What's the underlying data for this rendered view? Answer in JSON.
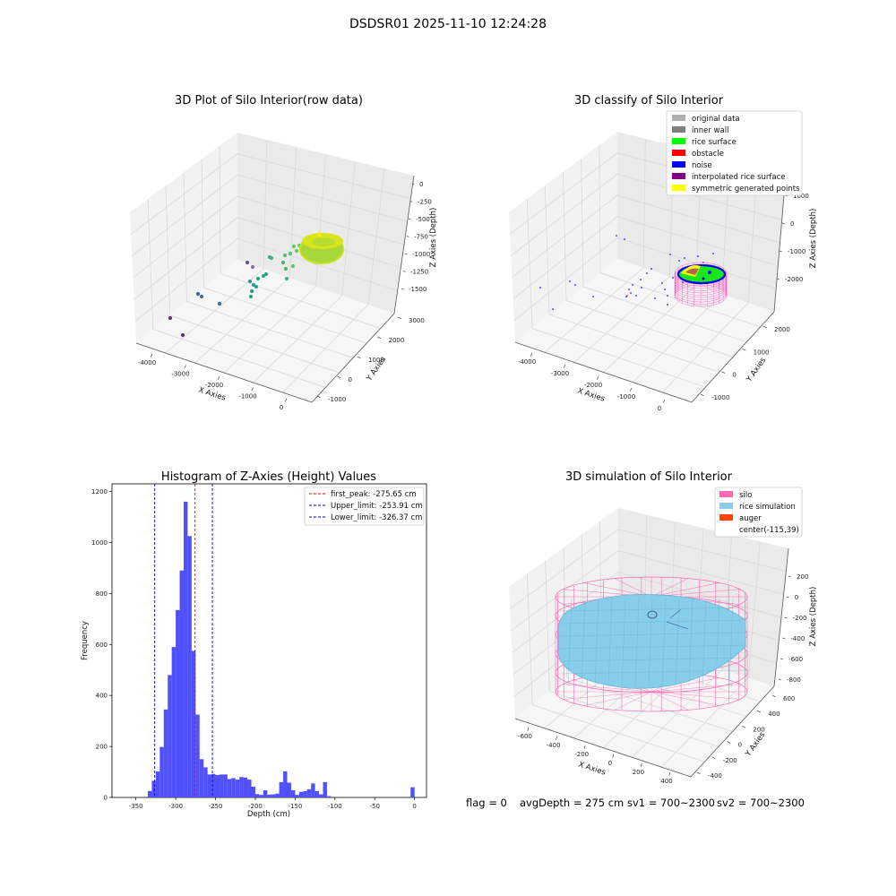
{
  "figure": {
    "suptitle": "DSDSR01 2025-11-10 12:24:28",
    "status": {
      "flag": "flag = 0",
      "avg_depth": "avgDepth = 275 cm",
      "sv1": "sv1 = 700~2300",
      "sv2": "sv2 = 700~2300"
    }
  },
  "chart_data": [
    {
      "type": "scatter",
      "projection": "3d",
      "title": "3D Plot of Silo Interior(row data)",
      "xlabel": "X Axies",
      "ylabel": "Y Axies",
      "zlabel": "Z Axies (Depth)",
      "x_ticks": [
        "-4000",
        "-3000",
        "-2000",
        "-1000",
        "0"
      ],
      "y_ticks": [
        "-1000",
        "0",
        "1000",
        "2000",
        "3000"
      ],
      "z_ticks": [
        "0",
        "-250",
        "-500",
        "-750",
        "-1000",
        "-1250",
        "-1500"
      ],
      "colormap": "viridis",
      "sample_points": [
        {
          "x": -4000,
          "y": -600,
          "z": -1600
        },
        {
          "x": -3900,
          "y": -300,
          "z": -1500
        },
        {
          "x": -3700,
          "y": 0,
          "z": -1300
        },
        {
          "x": -3400,
          "y": 200,
          "z": -1300
        },
        {
          "x": -3000,
          "y": 200,
          "z": -1250
        },
        {
          "x": -2600,
          "y": 700,
          "z": -1100
        },
        {
          "x": -2300,
          "y": 900,
          "z": -1050
        },
        {
          "x": -2000,
          "y": 800,
          "z": -1000
        },
        {
          "x": -1800,
          "y": 1300,
          "z": -900
        },
        {
          "x": -1500,
          "y": 1200,
          "z": -850
        },
        {
          "x": -1200,
          "y": 1600,
          "z": -800
        },
        {
          "x": -1000,
          "y": 1800,
          "z": -700
        }
      ]
    },
    {
      "type": "scatter",
      "projection": "3d",
      "title": "3D classify of Silo Interior",
      "xlabel": "X Axies",
      "ylabel": "Y Axies",
      "zlabel": "Z Axies (Depth)",
      "x_ticks": [
        "-4000",
        "-3000",
        "-2000",
        "-1000",
        "0"
      ],
      "y_ticks": [
        "-1000",
        "0",
        "1000",
        "2000"
      ],
      "z_ticks": [
        "1000",
        "0",
        "-1000",
        "-2000"
      ],
      "legend_position": "top-right",
      "legend": [
        {
          "label": "original data",
          "color": "#b0b0b0"
        },
        {
          "label": "inner wall",
          "color": "#808080"
        },
        {
          "label": "rice surface",
          "color": "#00ff00"
        },
        {
          "label": "obstacle",
          "color": "#ff0000"
        },
        {
          "label": "noise",
          "color": "#0000ff"
        },
        {
          "label": "interpolated rice surface",
          "color": "#800080"
        },
        {
          "label": "symmetric generated points",
          "color": "#ffff00"
        }
      ]
    },
    {
      "type": "bar",
      "subtype": "histogram",
      "title": "Histogram of Z-Axies (Height) Values",
      "xlabel": "Depth (cm)",
      "ylabel": "Frequency",
      "xlim": [
        -380,
        15
      ],
      "ylim": [
        0,
        1230
      ],
      "x_ticks": [
        -350,
        -300,
        -250,
        -200,
        -150,
        -100,
        -50,
        0
      ],
      "y_ticks": [
        0,
        200,
        400,
        600,
        800,
        1000,
        1200
      ],
      "bar_color": "#4c4cff",
      "bins": [
        {
          "x0": -345,
          "x1": -335,
          "value": 0
        },
        {
          "x0": -335,
          "x1": -330,
          "value": 25
        },
        {
          "x0": -330,
          "x1": -325,
          "value": 65
        },
        {
          "x0": -325,
          "x1": -320,
          "value": 102
        },
        {
          "x0": -320,
          "x1": -315,
          "value": 198
        },
        {
          "x0": -315,
          "x1": -310,
          "value": 345
        },
        {
          "x0": -310,
          "x1": -305,
          "value": 480
        },
        {
          "x0": -305,
          "x1": -300,
          "value": 590
        },
        {
          "x0": -300,
          "x1": -295,
          "value": 735
        },
        {
          "x0": -295,
          "x1": -290,
          "value": 890
        },
        {
          "x0": -290,
          "x1": -285,
          "value": 1160
        },
        {
          "x0": -285,
          "x1": -280,
          "value": 1025
        },
        {
          "x0": -280,
          "x1": -275,
          "value": 575
        },
        {
          "x0": -275,
          "x1": -270,
          "value": 325
        },
        {
          "x0": -270,
          "x1": -265,
          "value": 150
        },
        {
          "x0": -265,
          "x1": -260,
          "value": 118
        },
        {
          "x0": -260,
          "x1": -255,
          "value": 90
        },
        {
          "x0": -255,
          "x1": -250,
          "value": 92
        },
        {
          "x0": -250,
          "x1": -245,
          "value": 88
        },
        {
          "x0": -245,
          "x1": -240,
          "value": 90
        },
        {
          "x0": -240,
          "x1": -235,
          "value": 90
        },
        {
          "x0": -235,
          "x1": -230,
          "value": 72
        },
        {
          "x0": -230,
          "x1": -225,
          "value": 76
        },
        {
          "x0": -225,
          "x1": -220,
          "value": 70
        },
        {
          "x0": -220,
          "x1": -215,
          "value": 80
        },
        {
          "x0": -215,
          "x1": -210,
          "value": 78
        },
        {
          "x0": -210,
          "x1": -205,
          "value": 70
        },
        {
          "x0": -205,
          "x1": -200,
          "value": 42
        },
        {
          "x0": -200,
          "x1": -195,
          "value": 13
        },
        {
          "x0": -195,
          "x1": -190,
          "value": 10
        },
        {
          "x0": -190,
          "x1": -185,
          "value": 28
        },
        {
          "x0": -185,
          "x1": -180,
          "value": 11
        },
        {
          "x0": -180,
          "x1": -175,
          "value": 12
        },
        {
          "x0": -175,
          "x1": -170,
          "value": 15
        },
        {
          "x0": -170,
          "x1": -165,
          "value": 60
        },
        {
          "x0": -165,
          "x1": -160,
          "value": 102
        },
        {
          "x0": -160,
          "x1": -155,
          "value": 58
        },
        {
          "x0": -155,
          "x1": -150,
          "value": 28
        },
        {
          "x0": -150,
          "x1": -145,
          "value": 10
        },
        {
          "x0": -145,
          "x1": -140,
          "value": 22
        },
        {
          "x0": -140,
          "x1": -135,
          "value": 25
        },
        {
          "x0": -135,
          "x1": -130,
          "value": 32
        },
        {
          "x0": -130,
          "x1": -125,
          "value": 55
        },
        {
          "x0": -125,
          "x1": -120,
          "value": 25
        },
        {
          "x0": -120,
          "x1": -115,
          "value": 12
        },
        {
          "x0": -115,
          "x1": -110,
          "value": 60
        },
        {
          "x0": -110,
          "x1": -105,
          "value": 5
        },
        {
          "x0": -5,
          "x1": 0,
          "value": 40
        }
      ],
      "vlines": [
        {
          "label": "first_peak: -275.65 cm",
          "x": -275.65,
          "color": "#ff0000"
        },
        {
          "label": "Upper_limit: -253.91 cm",
          "x": -253.91,
          "color": "#0000cc"
        },
        {
          "label": "Lower_limit: -326.37 cm",
          "x": -326.37,
          "color": "#0000cc"
        }
      ],
      "legend_position": "top-right"
    },
    {
      "type": "surface",
      "projection": "3d",
      "title": "3D simulation of Silo Interior",
      "xlabel": "X Axies",
      "ylabel": "Y Axies",
      "zlabel": "Z Axies (Depth)",
      "x_ticks": [
        "-600",
        "-400",
        "-200",
        "0",
        "200",
        "400"
      ],
      "y_ticks": [
        "-400",
        "-200",
        "0",
        "200",
        "400",
        "600"
      ],
      "z_ticks": [
        "200",
        "0",
        "-200",
        "-400",
        "-600",
        "-800"
      ],
      "legend_position": "top-right",
      "legend": [
        {
          "label": "silo",
          "color": "#ff69b4"
        },
        {
          "label": "rice simulation",
          "color": "#87ceeb"
        },
        {
          "label": "auger",
          "color": "#ff4500"
        },
        {
          "label": "center(-115,39)",
          "color": ""
        }
      ]
    }
  ]
}
